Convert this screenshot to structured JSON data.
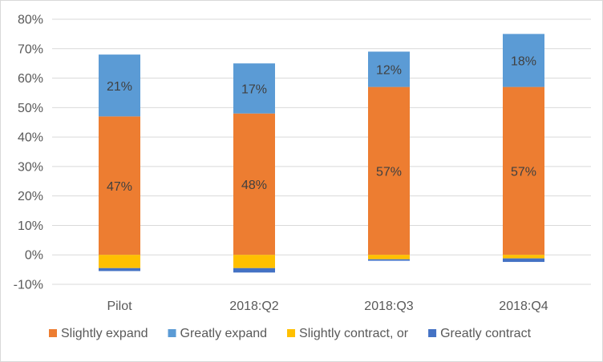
{
  "chart_data": {
    "type": "bar",
    "stacked": true,
    "categories": [
      "Pilot",
      "2018:Q2",
      "2018:Q3",
      "2018:Q4"
    ],
    "ylim": [
      -10,
      80
    ],
    "yticks": [
      -10,
      0,
      10,
      20,
      30,
      40,
      50,
      60,
      70,
      80
    ],
    "ytick_labels": [
      "-10%",
      "0%",
      "10%",
      "20%",
      "30%",
      "40%",
      "50%",
      "60%",
      "70%",
      "80%"
    ],
    "grid": true,
    "legend_position": "bottom",
    "series": [
      {
        "name": "Slightly expand",
        "color": "#ED7D31",
        "values": [
          47,
          48,
          57,
          57
        ],
        "labels": [
          "47%",
          "48%",
          "57%",
          "57%"
        ]
      },
      {
        "name": "Greatly expand",
        "color": "#5B9BD5",
        "values": [
          21,
          17,
          12,
          18
        ],
        "labels": [
          "21%",
          "17%",
          "12%",
          "18%"
        ]
      },
      {
        "name": "Slightly contract, or",
        "color": "#FFC000",
        "values": [
          -4.5,
          -4.5,
          -1.5,
          -1.2
        ],
        "labels": []
      },
      {
        "name": "Greatly contract",
        "color": "#4472C4",
        "values": [
          -1,
          -1.5,
          -0.5,
          -1.2
        ],
        "labels": []
      }
    ]
  }
}
